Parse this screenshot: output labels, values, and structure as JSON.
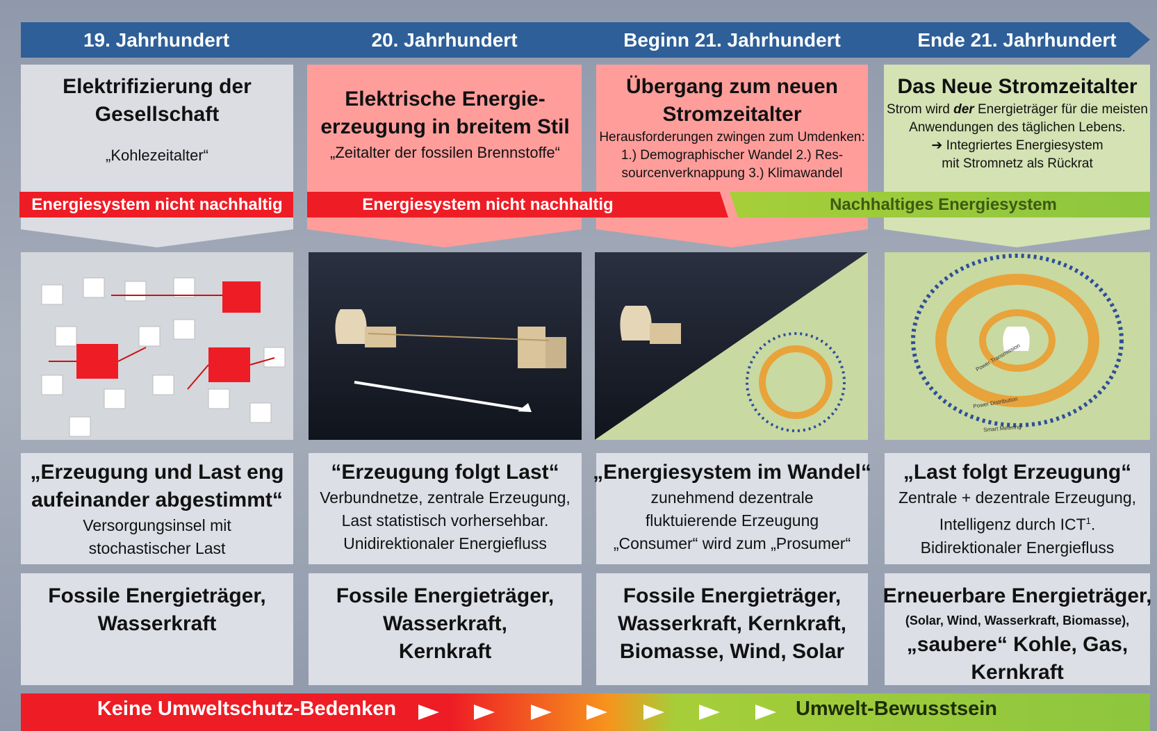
{
  "timeline": [
    "19. Jahrhundert",
    "20. Jahrhundert",
    "Beginn 21. Jahrhundert",
    "Ende 21. Jahrhundert"
  ],
  "eras": [
    {
      "title": [
        "Elektrifizierung der",
        "Gesellschaft"
      ],
      "subtitle": "„Kohlezeitalter“"
    },
    {
      "title": [
        "Elektrische Energie-",
        "erzeugung in breitem Stil"
      ],
      "subtitle": "„Zeitalter der fossilen Brennstoffe“"
    },
    {
      "title": [
        "Übergang zum neuen",
        "Stromzeitalter"
      ],
      "body": [
        "Herausforderungen zwingen zum Umdenken:",
        "1.) Demographischer Wandel 2.) Res-",
        "sourcenverknappung 3.) Klimawandel"
      ]
    },
    {
      "title": [
        "Das Neue Stromzeitalter"
      ],
      "body_intro": [
        "Strom wird ",
        "der",
        " Energieträger für die meisten"
      ],
      "body": [
        "Anwendungen des täglichen Lebens.",
        "➔ Integriertes Energiesystem",
        "mit Stromnetz als Rückrat"
      ]
    }
  ],
  "status_bars": {
    "first": "Energiesystem nicht nachhaltig",
    "second": "Energiesystem nicht nachhaltig",
    "third": "Nachhaltiges Energiesystem"
  },
  "image_labels": [
    "Power Transmission",
    "Power Distribution",
    "Smart Metering"
  ],
  "descriptions": [
    {
      "heading": [
        "„Erzeugung und Last eng",
        "aufeinander abgestimmt“"
      ],
      "lines": [
        "Versorgungsinsel mit",
        "stochastischer Last"
      ]
    },
    {
      "heading": [
        "“Erzeugung folgt Last“"
      ],
      "lines": [
        "Verbundnetze, zentrale Erzeugung,",
        "Last statistisch vorhersehbar.",
        "Unidirektionaler Energiefluss"
      ]
    },
    {
      "heading": [
        "„Energiesystem im Wandel“"
      ],
      "lines": [
        "zunehmend dezentrale",
        "fluktuierende Erzeugung",
        "„Consumer“ wird zum „Prosumer“"
      ]
    },
    {
      "heading": [
        "„Last folgt Erzeugung“"
      ],
      "lines": [
        "Zentrale + dezentrale Erzeugung,",
        "Intelligenz durch ICT",
        "Bidirektionaler Energiefluss"
      ],
      "footnote": {
        "sup": "1",
        "after": "."
      }
    }
  ],
  "energy_sources": [
    [
      "Fossile Energieträger,",
      "Wasserkraft"
    ],
    [
      "Fossile Energieträger,",
      "Wasserkraft,",
      "Kernkraft"
    ],
    [
      "Fossile Energieträger,",
      "Wasserkraft, Kernkraft,",
      "Biomasse, Wind, Solar"
    ],
    [
      "Erneuerbare Energieträger,",
      "(Solar, Wind, Wasserkraft, Biomasse),",
      "„saubere“ Kohle, Gas,",
      "Kernkraft"
    ]
  ],
  "footer": {
    "left": "Keine Umweltschutz-Bedenken",
    "right": "Umwelt-Bewusstsein"
  }
}
